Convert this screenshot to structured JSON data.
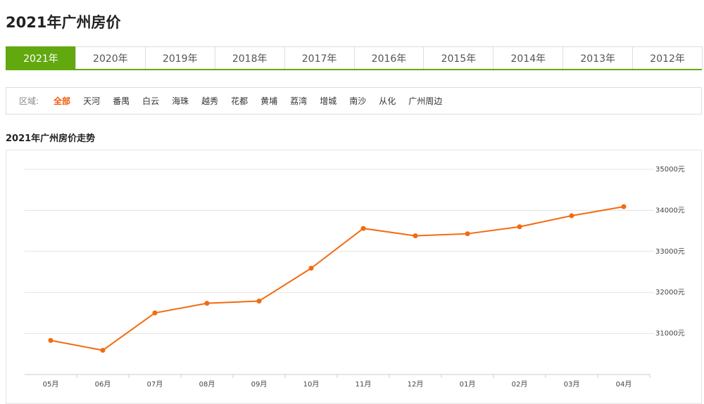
{
  "header": {
    "title": "2021年广州房价"
  },
  "tabs": {
    "items": [
      "2021年",
      "2020年",
      "2019年",
      "2018年",
      "2017年",
      "2016年",
      "2015年",
      "2014年",
      "2013年",
      "2012年"
    ],
    "active": "2021年"
  },
  "filter": {
    "label": "区域:",
    "items": [
      "全部",
      "天河",
      "番禺",
      "白云",
      "海珠",
      "越秀",
      "花都",
      "黄埔",
      "荔湾",
      "增城",
      "南沙",
      "从化",
      "广州周边"
    ],
    "active": "全部"
  },
  "chart_data": {
    "type": "line",
    "title": "2021年广州房价走势",
    "categories": [
      "05月",
      "06月",
      "07月",
      "08月",
      "09月",
      "10月",
      "11月",
      "12月",
      "01月",
      "02月",
      "03月",
      "04月"
    ],
    "series": [
      {
        "name": "房价",
        "color": "#f36a10",
        "values": [
          30830,
          30590,
          31500,
          31735,
          31790,
          32590,
          33560,
          33380,
          33430,
          33600,
          33870,
          34090
        ]
      }
    ],
    "ylim": [
      30000,
      35000
    ],
    "yticks": [
      {
        "value": 31000,
        "label": "31000元"
      },
      {
        "value": 32000,
        "label": "32000元"
      },
      {
        "value": 33000,
        "label": "33000元"
      },
      {
        "value": 34000,
        "label": "34000元"
      },
      {
        "value": 35000,
        "label": "35000元"
      }
    ],
    "grid": true
  }
}
